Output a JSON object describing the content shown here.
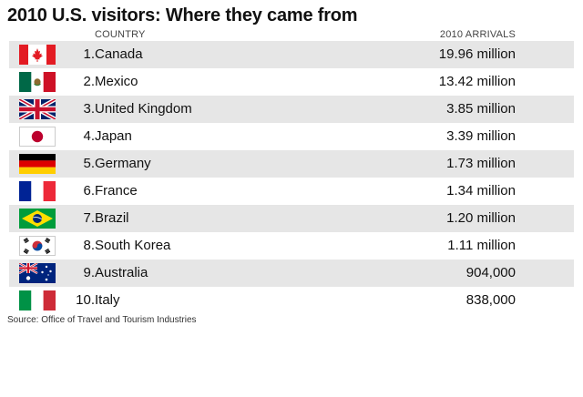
{
  "title": "2010 U.S. visitors: Where they came from",
  "source": "Source: Office of Travel and Tourism Industries",
  "chart_data": {
    "type": "table",
    "title": "2010 U.S. visitors: Where they came from",
    "columns": [
      "COUNTRY",
      "2010 ARRIVALS"
    ],
    "rows": [
      {
        "rank": "1.",
        "country": "Canada",
        "arrivals": "19.96 million",
        "flag": "canada-flag-icon"
      },
      {
        "rank": "2.",
        "country": "Mexico",
        "arrivals": "13.42 million",
        "flag": "mexico-flag-icon"
      },
      {
        "rank": "3.",
        "country": "United Kingdom",
        "arrivals": "3.85 million",
        "flag": "uk-flag-icon"
      },
      {
        "rank": "4.",
        "country": "Japan",
        "arrivals": "3.39 million",
        "flag": "japan-flag-icon"
      },
      {
        "rank": "5.",
        "country": "Germany",
        "arrivals": "1.73 million",
        "flag": "germany-flag-icon"
      },
      {
        "rank": "6.",
        "country": "France",
        "arrivals": "1.34 million",
        "flag": "france-flag-icon"
      },
      {
        "rank": "7.",
        "country": "Brazil",
        "arrivals": "1.20 million",
        "flag": "brazil-flag-icon"
      },
      {
        "rank": "8.",
        "country": "South Korea",
        "arrivals": "1.11 million",
        "flag": "south-korea-flag-icon"
      },
      {
        "rank": "9.",
        "country": "Australia",
        "arrivals": "904,000",
        "flag": "australia-flag-icon"
      },
      {
        "rank": "10.",
        "country": "Italy",
        "arrivals": "838,000",
        "flag": "italy-flag-icon"
      }
    ],
    "row_shading": "#e6e6e6"
  }
}
